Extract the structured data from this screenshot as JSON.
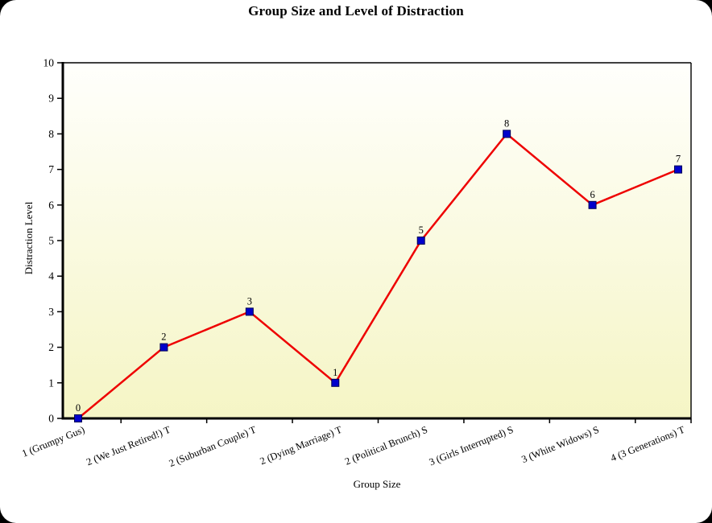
{
  "window": {
    "background_color": "#000000",
    "canvas_color": "#ffffff"
  },
  "chart_data": {
    "type": "line",
    "title": "Group Size and Level of Distraction",
    "xlabel": "Group Size",
    "ylabel": "Distraction Level",
    "categories": [
      "1 (Grumpy Gus)",
      "2 (We Just Retired!) T",
      "2 (Suburban Couple) T",
      "2 (Dying Marriage) T",
      "2 (Political Brunch) S",
      "3 (Girls Interrupted) S",
      "3 (White Widows) S",
      "4 (3 Generations) T"
    ],
    "values": [
      0,
      2,
      3,
      1,
      5,
      8,
      6,
      7
    ],
    "data_labels": [
      "0",
      "2",
      "3",
      "1",
      "5",
      "8",
      "6",
      "7"
    ],
    "ylim": [
      0,
      10
    ],
    "yticks": [
      0,
      1,
      2,
      3,
      4,
      5,
      6,
      7,
      8,
      9,
      10
    ],
    "grid": false,
    "legend": "none",
    "styles": {
      "line_color": "#ee0000",
      "marker_fill": "#0000cc",
      "marker_border": "#000055",
      "plot_bg_top": "#fffffc",
      "plot_bg_bottom": "#f5f5c5",
      "axis_color": "#000000",
      "text_color": "#000000"
    }
  }
}
